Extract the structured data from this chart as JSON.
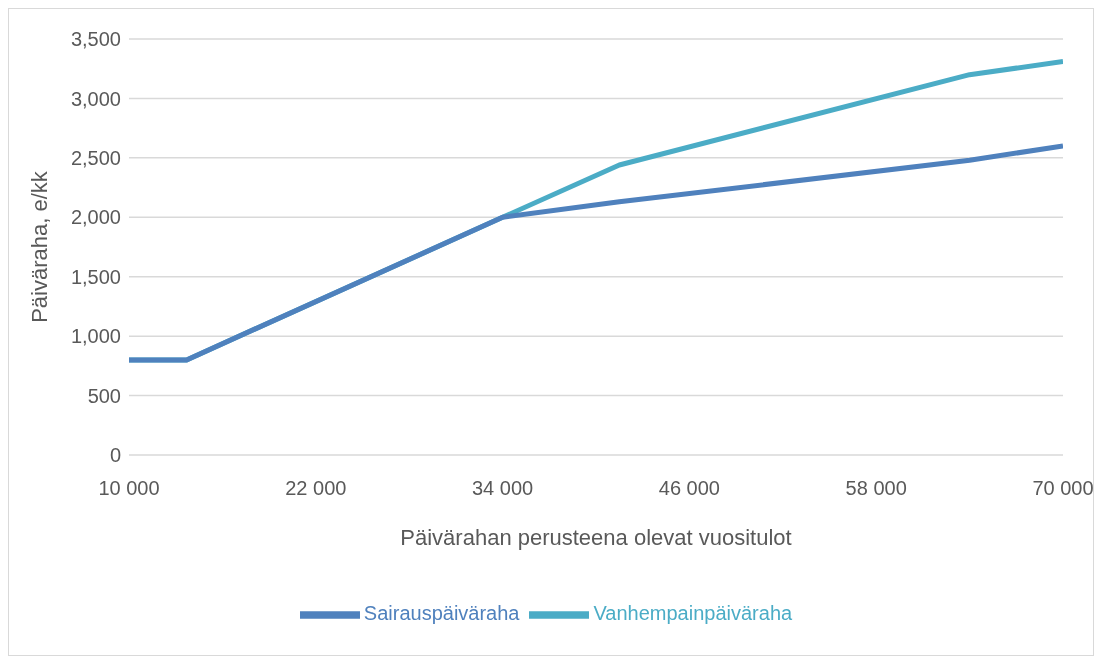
{
  "chart_data": {
    "type": "line",
    "xlabel": "Päivärahan perusteena olevat vuositulot",
    "ylabel": "Päiväraha, e/kk",
    "x": [
      10000,
      13700,
      34000,
      41500,
      64000,
      70000
    ],
    "series": [
      {
        "name": "Vanhempainpäiväraha",
        "color": "#4bacc6",
        "values": [
          800,
          800,
          2000,
          2440,
          3200,
          3310
        ]
      },
      {
        "name": "Sairauspäiväraha",
        "color": "#4f81bd",
        "values": [
          800,
          800,
          2000,
          2130,
          2480,
          2600
        ]
      }
    ],
    "xlim": [
      10000,
      70000
    ],
    "xticks": [
      {
        "value": 10000,
        "label": "10 000"
      },
      {
        "value": 22000,
        "label": "22 000"
      },
      {
        "value": 34000,
        "label": "34 000"
      },
      {
        "value": 46000,
        "label": "46 000"
      },
      {
        "value": 58000,
        "label": "58 000"
      },
      {
        "value": 70000,
        "label": "70 000"
      }
    ],
    "ylim": [
      0,
      3500
    ],
    "yticks": [
      {
        "value": 0,
        "label": "0"
      },
      {
        "value": 500,
        "label": "500"
      },
      {
        "value": 1000,
        "label": "1,000"
      },
      {
        "value": 1500,
        "label": "1,500"
      },
      {
        "value": 2000,
        "label": "2,000"
      },
      {
        "value": 2500,
        "label": "2,500"
      },
      {
        "value": 3000,
        "label": "3,000"
      },
      {
        "value": 3500,
        "label": "3,500"
      }
    ],
    "grid": "y",
    "legend": "bottom",
    "marker": "none",
    "line_style": "solid"
  }
}
